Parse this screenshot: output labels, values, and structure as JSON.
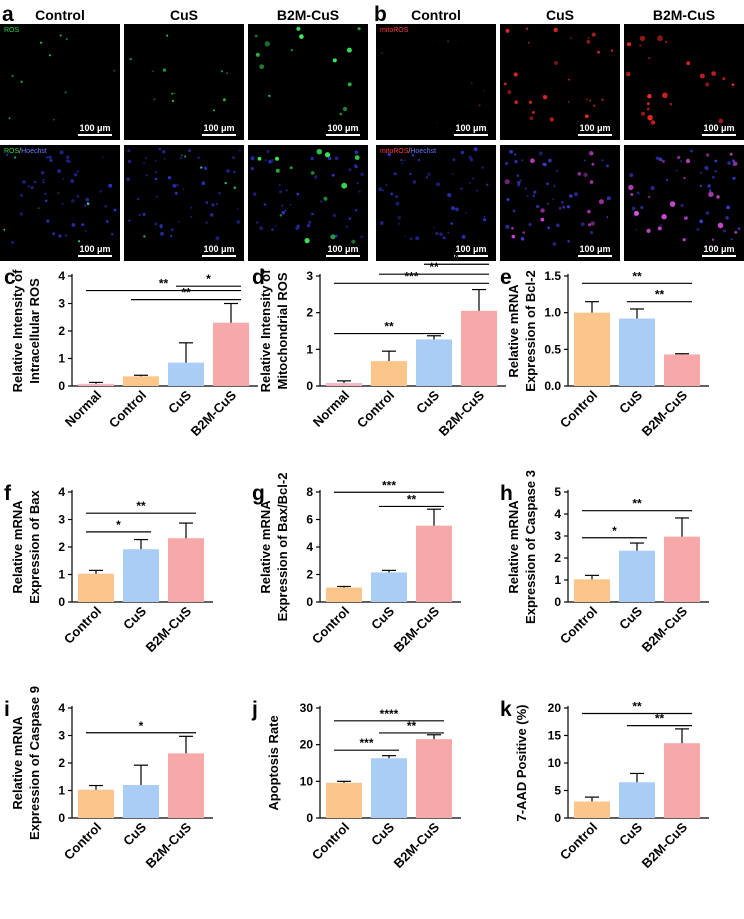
{
  "panel_a": {
    "letter": "a",
    "columns": [
      "Control",
      "CuS",
      "B2M-CuS"
    ],
    "row1_stain": "ROS",
    "row2_stain_a": "ROS",
    "row2_stain_sep": "/",
    "row2_stain_b": "Hoechst",
    "scalebar": "100 μm"
  },
  "panel_b": {
    "letter": "b",
    "columns": [
      "Control",
      "CuS",
      "B2M-CuS"
    ],
    "row1_stain": "mitoROS",
    "row2_stain_a": "mitoROS",
    "row2_stain_sep": "/",
    "row2_stain_b": "Hoechst",
    "scalebar": "100 μm"
  },
  "colors": {
    "Normal": "#f7b6c1",
    "Control": "#fcc68a",
    "CuS": "#a9cdf5",
    "B2M-CuS": "#f7a8a8",
    "error": "#000000"
  },
  "chart_data": [
    {
      "id": "c",
      "letter": "c",
      "type": "bar",
      "categories": [
        "Normal",
        "Control",
        "CuS",
        "B2M-CuS"
      ],
      "values": [
        0.08,
        0.35,
        0.85,
        2.3
      ],
      "errors": [
        0.05,
        0.04,
        0.72,
        0.7
      ],
      "ylabel_lines": [
        "Relative  Intensity of",
        "Intracellular ROS"
      ],
      "ylim": [
        0,
        4
      ],
      "yticks": [
        "0",
        "1",
        "2",
        "3",
        "4"
      ],
      "sig": [
        {
          "from": 0,
          "to": 3,
          "label": "**",
          "y": 3.47
        },
        {
          "from": 2,
          "to": 3,
          "label": "*",
          "y": 3.63
        },
        {
          "from": 1,
          "to": 3,
          "label": "**",
          "y": 3.14
        }
      ]
    },
    {
      "id": "d",
      "letter": "d",
      "type": "bar",
      "categories": [
        "Normal",
        "Control",
        "CuS",
        "B2M-CuS"
      ],
      "values": [
        0.08,
        0.68,
        1.27,
        2.05
      ],
      "errors": [
        0.06,
        0.27,
        0.1,
        0.58
      ],
      "ylabel_lines": [
        "Relative  Intensity of",
        "Mitochondrial ROS"
      ],
      "ylim": [
        0,
        3
      ],
      "yticks": [
        "0",
        "1",
        "2",
        "3"
      ],
      "sig": [
        {
          "from": 0,
          "to": 2,
          "label": "**",
          "y": 1.43
        },
        {
          "from": 0,
          "to": 3,
          "label": "***",
          "y": 2.8
        },
        {
          "from": 1,
          "to": 3,
          "label": "**",
          "y": 3.05
        },
        {
          "from": 2,
          "to": 3,
          "label": "*",
          "y": 3.32
        }
      ]
    },
    {
      "id": "e",
      "letter": "e",
      "type": "bar",
      "categories": [
        "Control",
        "CuS",
        "B2M-CuS"
      ],
      "values": [
        1.0,
        0.92,
        0.43
      ],
      "errors": [
        0.15,
        0.13,
        0.01
      ],
      "ylabel_lines": [
        "Relative mRNA",
        "Expression of Bcl-2"
      ],
      "ylim": [
        0,
        1.5
      ],
      "yticks": [
        "0.0",
        "0.5",
        "1.0",
        "1.5"
      ],
      "sig": [
        {
          "from": 0,
          "to": 2,
          "label": "**",
          "y": 1.4
        },
        {
          "from": 1,
          "to": 2,
          "label": "**",
          "y": 1.15
        }
      ]
    },
    {
      "id": "f",
      "letter": "f",
      "type": "bar",
      "categories": [
        "Control",
        "CuS",
        "B2M-CuS"
      ],
      "values": [
        1.03,
        1.92,
        2.32
      ],
      "errors": [
        0.12,
        0.35,
        0.55
      ],
      "ylabel_lines": [
        "Relative mRNA",
        "Expression of Bax"
      ],
      "ylim": [
        0,
        4
      ],
      "yticks": [
        "0",
        "1",
        "2",
        "3",
        "4"
      ],
      "sig": [
        {
          "from": 0,
          "to": 1,
          "label": "*",
          "y": 2.55
        },
        {
          "from": 0,
          "to": 2,
          "label": "**",
          "y": 3.23
        }
      ]
    },
    {
      "id": "g",
      "letter": "g",
      "type": "bar",
      "categories": [
        "Control",
        "CuS",
        "B2M-CuS"
      ],
      "values": [
        1.05,
        2.15,
        5.55
      ],
      "errors": [
        0.08,
        0.15,
        1.2
      ],
      "ylabel_lines": [
        "Relative mRNA",
        "Expression of Bax/Bcl-2"
      ],
      "ylim": [
        0,
        8
      ],
      "yticks": [
        "0",
        "2",
        "4",
        "6",
        "8"
      ],
      "sig": [
        {
          "from": 0,
          "to": 2,
          "label": "***",
          "y": 7.98
        },
        {
          "from": 1,
          "to": 2,
          "label": "**",
          "y": 6.95
        }
      ]
    },
    {
      "id": "h",
      "letter": "h",
      "type": "bar",
      "categories": [
        "Control",
        "CuS",
        "B2M-CuS"
      ],
      "values": [
        1.03,
        2.33,
        2.97
      ],
      "errors": [
        0.18,
        0.35,
        0.85
      ],
      "ylabel_lines": [
        "Relative mRNA",
        "Expression of Caspase 3"
      ],
      "ylim": [
        0,
        5
      ],
      "yticks": [
        "0",
        "1",
        "2",
        "3",
        "4",
        "5"
      ],
      "sig": [
        {
          "from": 0,
          "to": 1,
          "label": "*",
          "y": 2.92
        },
        {
          "from": 0,
          "to": 2,
          "label": "**",
          "y": 4.15
        }
      ]
    },
    {
      "id": "i",
      "letter": "i",
      "type": "bar",
      "categories": [
        "Control",
        "CuS",
        "B2M-CuS"
      ],
      "values": [
        1.03,
        1.2,
        2.35
      ],
      "errors": [
        0.15,
        0.72,
        0.62
      ],
      "ylabel_lines": [
        "Relative mRNA",
        "Expression of Caspase 9"
      ],
      "ylim": [
        0,
        4
      ],
      "yticks": [
        "0",
        "1",
        "2",
        "3",
        "4"
      ],
      "sig": [
        {
          "from": 0,
          "to": 2,
          "label": "*",
          "y": 3.1
        }
      ]
    },
    {
      "id": "j",
      "letter": "j",
      "type": "bar",
      "categories": [
        "Control",
        "CuS",
        "B2M-CuS"
      ],
      "values": [
        9.6,
        16.3,
        21.5
      ],
      "errors": [
        0.4,
        0.7,
        1.2
      ],
      "ylabel_lines": [
        "Apoptosis Rate"
      ],
      "ylim": [
        0,
        30
      ],
      "yticks": [
        "0",
        "10",
        "20",
        "30"
      ],
      "sig": [
        {
          "from": 0,
          "to": 1,
          "label": "***",
          "y": 18.5
        },
        {
          "from": 0,
          "to": 2,
          "label": "****",
          "y": 26.5
        },
        {
          "from": 1,
          "to": 2,
          "label": "**",
          "y": 23.2
        }
      ]
    },
    {
      "id": "k",
      "letter": "k",
      "type": "bar",
      "categories": [
        "Control",
        "CuS",
        "B2M-CuS"
      ],
      "values": [
        3.0,
        6.5,
        13.6
      ],
      "errors": [
        0.8,
        1.6,
        2.6
      ],
      "ylabel_lines": [
        "7-AAD Positive (%)"
      ],
      "ylim": [
        0,
        20
      ],
      "yticks": [
        "0",
        "5",
        "10",
        "15",
        "20"
      ],
      "sig": [
        {
          "from": 0,
          "to": 2,
          "label": "**",
          "y": 19.0
        },
        {
          "from": 1,
          "to": 2,
          "label": "**",
          "y": 16.8
        }
      ]
    }
  ]
}
